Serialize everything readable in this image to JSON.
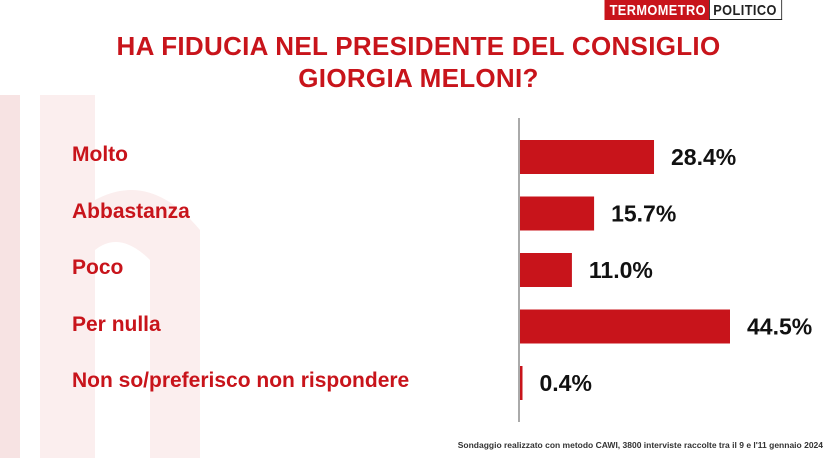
{
  "logo": {
    "part1": "TERMOMETRO",
    "part2": "POLITICO"
  },
  "title_line1": "HA FIDUCIA NEL PRESIDENTE DEL CONSIGLIO",
  "title_line2": "GIORGIA MELONI?",
  "colors": {
    "bar": "#c8141b",
    "accent": "#c8141b",
    "axis": "#555555"
  },
  "chart_data": {
    "type": "bar",
    "orientation": "horizontal",
    "categories": [
      "Molto",
      "Abbastanza",
      "Poco",
      "Per nulla",
      "Non so/preferisco non rispondere"
    ],
    "values": [
      28.4,
      15.7,
      11.0,
      44.5,
      0.4
    ],
    "value_labels": [
      "28.4%",
      "15.7%",
      "11.0%",
      "44.5%",
      "0.4%"
    ],
    "unit": "%",
    "xlim": [
      0,
      50
    ],
    "grid": false,
    "legend": "none"
  },
  "footnote": "Sondaggio realizzato con metodo CAWI, 3800 interviste raccolte tra il 9 e l'11 gennaio 2024"
}
